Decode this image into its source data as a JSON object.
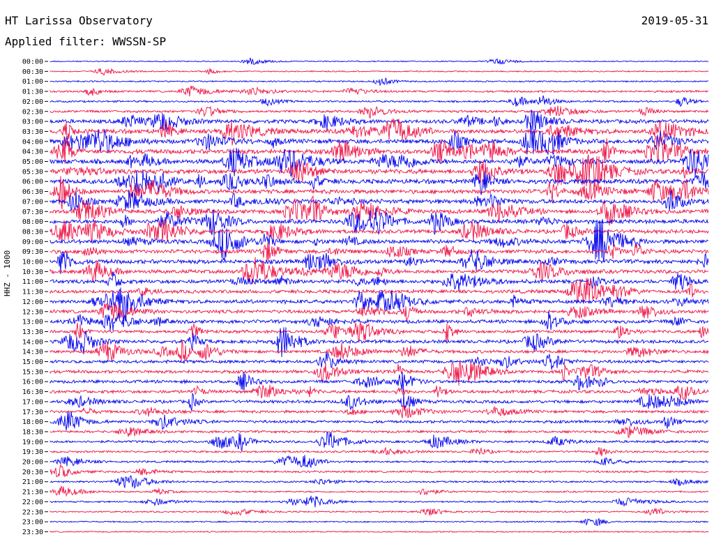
{
  "header": {
    "title": "HT Larissa Observatory",
    "date": "2019-05-31",
    "filter": "Applied filter: WWSSN-SP"
  },
  "channel": "HHZ - 1000",
  "colors": {
    "trace_a": "#0000ee",
    "trace_b": "#ee1144",
    "text": "#000000",
    "background": "#ffffff"
  },
  "chart_data": {
    "type": "line",
    "title": "HT Larissa Observatory",
    "ylabel": "HHZ - 1000",
    "xlabel": "",
    "grid": false,
    "legend": "none",
    "rows": [
      "00:00",
      "00:30",
      "01:00",
      "01:30",
      "02:00",
      "02:30",
      "03:00",
      "03:30",
      "04:00",
      "04:30",
      "05:00",
      "05:30",
      "06:00",
      "06:30",
      "07:00",
      "07:30",
      "08:00",
      "08:30",
      "09:00",
      "09:30",
      "10:00",
      "10:30",
      "11:00",
      "11:30",
      "12:00",
      "12:30",
      "13:00",
      "13:30",
      "14:00",
      "14:30",
      "15:00",
      "15:30",
      "16:00",
      "16:30",
      "17:00",
      "17:30",
      "18:00",
      "18:30",
      "19:00",
      "19:30",
      "20:00",
      "20:30",
      "21:00",
      "21:30",
      "22:00",
      "22:30",
      "23:00",
      "23:30"
    ],
    "activity": [
      0.05,
      0.1,
      0.15,
      0.3,
      0.25,
      0.4,
      0.8,
      1.0,
      1.0,
      1.0,
      1.0,
      1.0,
      1.0,
      0.9,
      0.9,
      0.9,
      0.9,
      0.8,
      0.9,
      0.8,
      0.9,
      0.8,
      0.8,
      0.7,
      0.8,
      0.7,
      0.7,
      0.6,
      0.7,
      0.6,
      0.6,
      0.6,
      0.6,
      0.6,
      0.6,
      0.5,
      0.5,
      0.4,
      0.4,
      0.3,
      0.3,
      0.3,
      0.25,
      0.2,
      0.2,
      0.15,
      0.12,
      0.1
    ]
  }
}
